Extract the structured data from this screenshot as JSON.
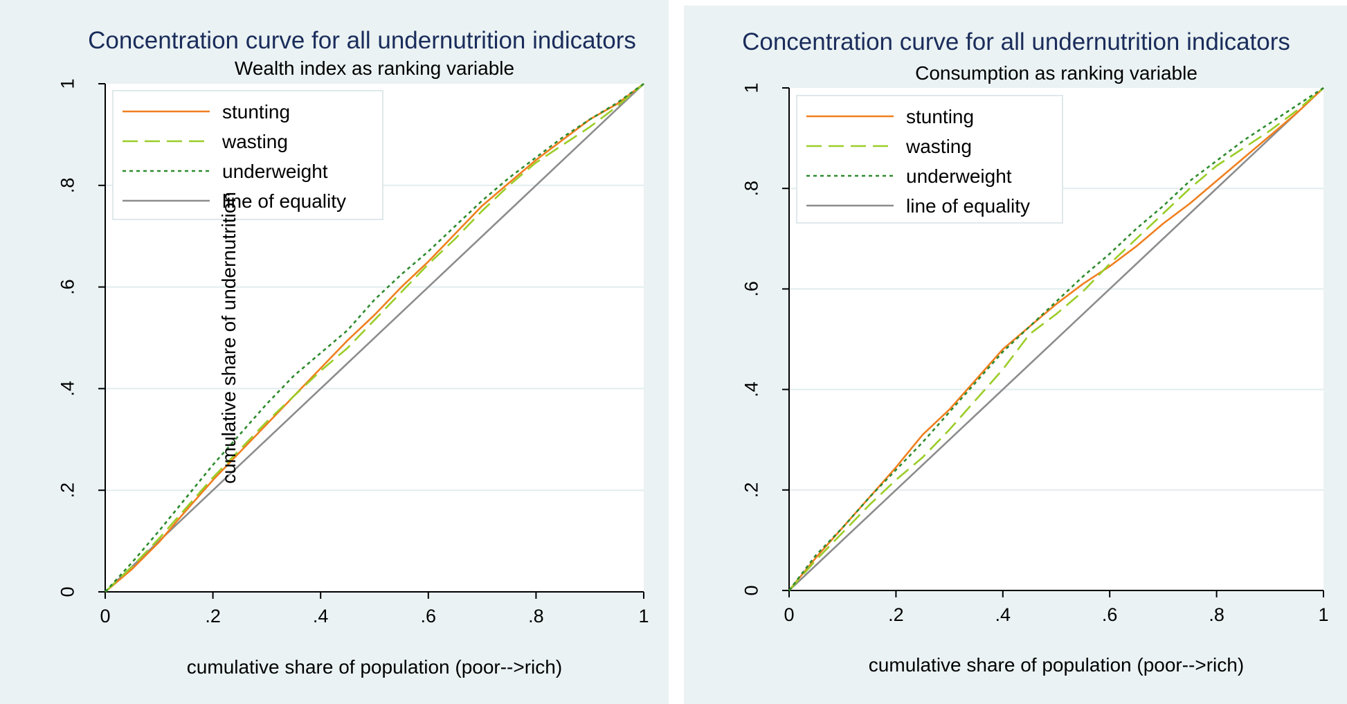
{
  "chart_data": [
    {
      "type": "line",
      "title": "Concentration curve for all undernutrition indicators",
      "subtitle": "Wealth index as ranking variable",
      "xlabel": "cumulative share of population (poor-->rich)",
      "ylabel": "cumulative share of undernutrition",
      "xlim": [
        0,
        1
      ],
      "ylim": [
        0,
        1
      ],
      "x_ticks": [
        "0",
        ".2",
        ".4",
        ".6",
        ".8",
        "1"
      ],
      "y_ticks": [
        "0",
        ".2",
        ".4",
        ".6",
        ".8",
        "1"
      ],
      "grid": "horizontal",
      "legend_position": "top-left",
      "series": [
        {
          "name": "stunting",
          "color": "#f07f1e",
          "style": "solid",
          "x": [
            0,
            0.05,
            0.1,
            0.15,
            0.2,
            0.25,
            0.3,
            0.35,
            0.4,
            0.45,
            0.5,
            0.55,
            0.6,
            0.65,
            0.7,
            0.75,
            0.8,
            0.85,
            0.9,
            0.95,
            1
          ],
          "y": [
            0,
            0.045,
            0.098,
            0.16,
            0.22,
            0.275,
            0.33,
            0.385,
            0.44,
            0.495,
            0.545,
            0.6,
            0.65,
            0.705,
            0.76,
            0.805,
            0.85,
            0.89,
            0.93,
            0.96,
            1
          ]
        },
        {
          "name": "wasting",
          "color": "#9bcd28",
          "style": "dashed",
          "x": [
            0,
            0.05,
            0.1,
            0.15,
            0.2,
            0.25,
            0.3,
            0.35,
            0.4,
            0.45,
            0.5,
            0.55,
            0.6,
            0.65,
            0.7,
            0.75,
            0.8,
            0.85,
            0.9,
            0.95,
            1
          ],
          "y": [
            0,
            0.05,
            0.105,
            0.165,
            0.225,
            0.28,
            0.335,
            0.385,
            0.435,
            0.48,
            0.535,
            0.59,
            0.645,
            0.695,
            0.75,
            0.8,
            0.845,
            0.88,
            0.915,
            0.955,
            1
          ]
        },
        {
          "name": "underweight",
          "color": "#2e8b2e",
          "style": "dotted",
          "x": [
            0,
            0.05,
            0.1,
            0.15,
            0.2,
            0.25,
            0.3,
            0.35,
            0.4,
            0.45,
            0.5,
            0.55,
            0.6,
            0.65,
            0.7,
            0.75,
            0.8,
            0.85,
            0.9,
            0.95,
            1
          ],
          "y": [
            0,
            0.058,
            0.12,
            0.185,
            0.25,
            0.31,
            0.37,
            0.425,
            0.47,
            0.515,
            0.575,
            0.625,
            0.67,
            0.72,
            0.77,
            0.815,
            0.855,
            0.895,
            0.93,
            0.962,
            1
          ]
        },
        {
          "name": "line of equality",
          "color": "#8c8c8c",
          "style": "solid",
          "x": [
            0,
            1
          ],
          "y": [
            0,
            1
          ]
        }
      ]
    },
    {
      "type": "line",
      "title": "Concentration curve for all undernutrition indicators",
      "subtitle": "Consumption as ranking variable",
      "xlabel": "cumulative share of population (poor-->rich)",
      "ylabel": "",
      "xlim": [
        0,
        1
      ],
      "ylim": [
        0,
        1
      ],
      "x_ticks": [
        "0",
        ".2",
        ".4",
        ".6",
        ".8",
        "1"
      ],
      "y_ticks": [
        "0",
        ".2",
        ".4",
        ".6",
        ".8",
        "1"
      ],
      "grid": "horizontal",
      "legend_position": "top-left",
      "series": [
        {
          "name": "stunting",
          "color": "#f07f1e",
          "style": "solid",
          "x": [
            0,
            0.05,
            0.1,
            0.15,
            0.2,
            0.25,
            0.3,
            0.35,
            0.4,
            0.45,
            0.5,
            0.55,
            0.6,
            0.65,
            0.7,
            0.75,
            0.8,
            0.85,
            0.9,
            0.95,
            1
          ],
          "y": [
            0,
            0.065,
            0.125,
            0.185,
            0.245,
            0.31,
            0.36,
            0.42,
            0.48,
            0.525,
            0.57,
            0.61,
            0.645,
            0.685,
            0.73,
            0.77,
            0.815,
            0.86,
            0.905,
            0.95,
            1
          ]
        },
        {
          "name": "wasting",
          "color": "#9bcd28",
          "style": "dashed",
          "x": [
            0,
            0.05,
            0.1,
            0.15,
            0.2,
            0.25,
            0.3,
            0.35,
            0.4,
            0.45,
            0.5,
            0.55,
            0.6,
            0.65,
            0.7,
            0.75,
            0.8,
            0.85,
            0.9,
            0.95,
            1
          ],
          "y": [
            0,
            0.06,
            0.115,
            0.17,
            0.22,
            0.265,
            0.32,
            0.38,
            0.44,
            0.51,
            0.55,
            0.595,
            0.65,
            0.7,
            0.75,
            0.8,
            0.845,
            0.88,
            0.915,
            0.955,
            1
          ]
        },
        {
          "name": "underweight",
          "color": "#2e8b2e",
          "style": "dotted",
          "x": [
            0,
            0.05,
            0.1,
            0.15,
            0.2,
            0.25,
            0.3,
            0.35,
            0.4,
            0.45,
            0.5,
            0.55,
            0.6,
            0.65,
            0.7,
            0.75,
            0.8,
            0.85,
            0.9,
            0.95,
            1
          ],
          "y": [
            0,
            0.07,
            0.125,
            0.185,
            0.24,
            0.295,
            0.355,
            0.415,
            0.475,
            0.525,
            0.575,
            0.625,
            0.67,
            0.72,
            0.765,
            0.815,
            0.855,
            0.895,
            0.93,
            0.965,
            1
          ]
        },
        {
          "name": "line of equality",
          "color": "#8c8c8c",
          "style": "solid",
          "x": [
            0,
            1
          ],
          "y": [
            0,
            1
          ]
        }
      ]
    }
  ]
}
